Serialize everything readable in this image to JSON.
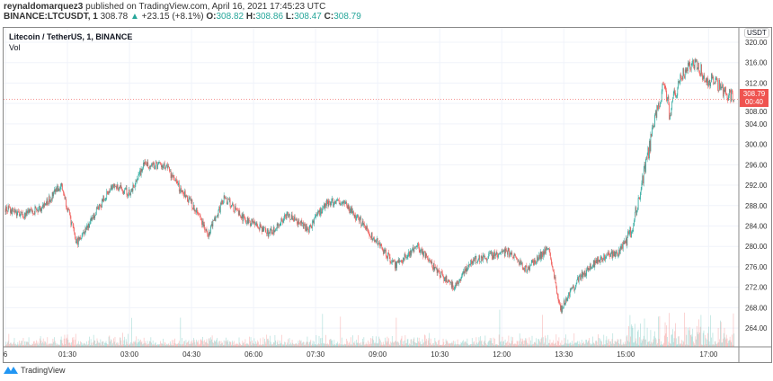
{
  "header": {
    "author": "reynaldomarquez3",
    "published": "published on TradingView.com, April 16, 2021 17:45:23 UTC"
  },
  "symbol": {
    "name": "BINANCE:LTCUSDT, 1",
    "last": "308.78",
    "change": "+23.15 (+8.1%)",
    "o_label": "O:",
    "o": "308.82",
    "h_label": "H:",
    "h": "308.86",
    "l_label": "L:",
    "l": "308.47",
    "c_label": "C:",
    "c": "308.79"
  },
  "legend": {
    "title": "Litecoin / TetherUS, 1, BINANCE",
    "vol": "Vol"
  },
  "axis": {
    "currency": "USDT",
    "price_label": "308.79",
    "countdown": "00:40"
  },
  "brand": "TradingView",
  "colors": {
    "up": "#26a69a",
    "down": "#ef5350"
  },
  "chart_data": {
    "type": "candlestick",
    "interval_minutes": 1,
    "ylim": [
      262,
      322
    ],
    "y_ticks": [
      "264.00",
      "268.00",
      "272.00",
      "276.00",
      "280.00",
      "284.00",
      "288.00",
      "292.00",
      "296.00",
      "300.00",
      "304.00",
      "308.00",
      "312.00",
      "316.00",
      "320.00"
    ],
    "x_ticks": [
      {
        "label": "6",
        "min": 0
      },
      {
        "label": "01:30",
        "min": 90
      },
      {
        "label": "03:00",
        "min": 180
      },
      {
        "label": "04:30",
        "min": 270
      },
      {
        "label": "06:00",
        "min": 360
      },
      {
        "label": "07:30",
        "min": 450
      },
      {
        "label": "09:00",
        "min": 540
      },
      {
        "label": "10:30",
        "min": 630
      },
      {
        "label": "12:00",
        "min": 720
      },
      {
        "label": "13:30",
        "min": 810
      },
      {
        "label": "15:00",
        "min": 900
      },
      {
        "label": "17:00",
        "min": 1020
      }
    ],
    "last_price": 308.79,
    "price_path_minutes": [
      0,
      25,
      57,
      81,
      103,
      129,
      155,
      181,
      201,
      233,
      253,
      278,
      294,
      318,
      344,
      383,
      409,
      440,
      466,
      488,
      519,
      565,
      598,
      624,
      650,
      677,
      703,
      729,
      756,
      788,
      805,
      832,
      858,
      891,
      911,
      930,
      943,
      956,
      963,
      982,
      1002,
      1015,
      1057
    ],
    "price_path_values": [
      287.4,
      286,
      288,
      292.2,
      280.7,
      286,
      292.2,
      290.4,
      296,
      295.7,
      291.3,
      287,
      282.5,
      289.5,
      285.7,
      282.5,
      286,
      283.4,
      288.7,
      288.7,
      284.3,
      276.3,
      279.9,
      275.5,
      271.9,
      277.2,
      278.1,
      279,
      275.5,
      279.9,
      267.5,
      273.7,
      277.2,
      279,
      284.3,
      296.6,
      305.4,
      312.4,
      306.3,
      314.2,
      316,
      313.3,
      308.9
    ]
  }
}
